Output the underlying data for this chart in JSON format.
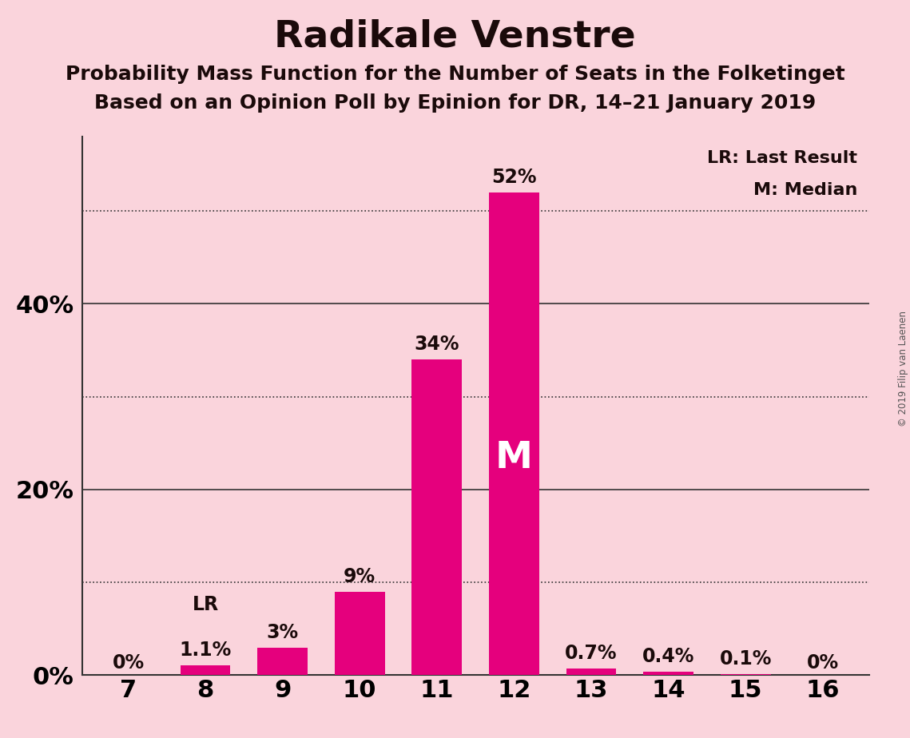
{
  "title": "Radikale Venstre",
  "subtitle1": "Probability Mass Function for the Number of Seats in the Folketinget",
  "subtitle2": "Based on an Opinion Poll by Epinion for DR, 14–21 January 2019",
  "categories": [
    7,
    8,
    9,
    10,
    11,
    12,
    13,
    14,
    15,
    16
  ],
  "values": [
    0.0,
    1.1,
    3.0,
    9.0,
    34.0,
    52.0,
    0.7,
    0.4,
    0.1,
    0.0
  ],
  "labels": [
    "0%",
    "1.1%",
    "3%",
    "9%",
    "34%",
    "52%",
    "0.7%",
    "0.4%",
    "0.1%",
    "0%"
  ],
  "bar_color": "#E5007D",
  "background_color": "#FAD4DC",
  "text_color": "#1a0a0a",
  "title_fontsize": 34,
  "subtitle_fontsize": 18,
  "label_fontsize": 17,
  "tick_fontsize": 22,
  "ytick_fontsize": 22,
  "median_bar": 12,
  "lr_bar": 8,
  "lr_label": "LR",
  "median_label": "M",
  "legend_text1": "LR: Last Result",
  "legend_text2": "M: Median",
  "copyright_text": "© 2019 Filip van Laenen",
  "ylim": [
    0,
    58
  ],
  "yticks_labeled": [
    0,
    20,
    40
  ],
  "ytick_labels": [
    "0%",
    "20%",
    "40%"
  ],
  "dotted_yticks": [
    10,
    30,
    50
  ],
  "solid_yticks": [
    20,
    40
  ]
}
